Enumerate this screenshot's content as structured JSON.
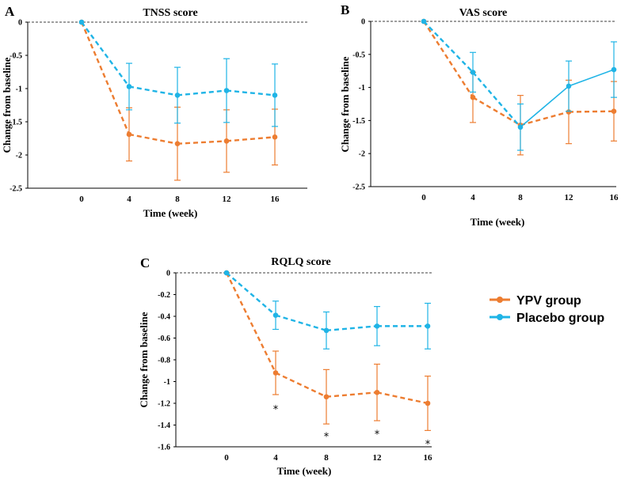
{
  "colors": {
    "ypv": "#ED7D31",
    "placebo": "#1FB4E6",
    "axis": "#000000"
  },
  "legend": {
    "items": [
      {
        "key": "ypv",
        "label": "YPV group"
      },
      {
        "key": "placebo",
        "label": "Placebo group"
      }
    ]
  },
  "chart_data": [
    {
      "id": "A",
      "panel_label": "A",
      "type": "line",
      "title": "TNSS score",
      "xlabel": "Time (week)",
      "ylabel": "Change from baseline",
      "categories": [
        "0",
        "4",
        "8",
        "12",
        "16"
      ],
      "x": [
        0,
        4,
        8,
        12,
        16
      ],
      "ylim": [
        -2.5,
        0
      ],
      "yticks": [
        0,
        -0.5,
        -1,
        -1.5,
        -2,
        -2.5
      ],
      "ytick_labels": [
        "0",
        "-0.5",
        "-1",
        "-1.5",
        "-2",
        "-2.5"
      ],
      "series": [
        {
          "name": "YPV group",
          "color_key": "ypv",
          "values": [
            0,
            -1.69,
            -1.83,
            -1.79,
            -1.73
          ],
          "err": [
            0,
            0.4,
            0.55,
            0.47,
            0.42
          ],
          "dash": [
            true,
            true,
            true,
            true
          ]
        },
        {
          "name": "Placebo group",
          "color_key": "placebo",
          "values": [
            0,
            -0.97,
            -1.1,
            -1.03,
            -1.1
          ],
          "err": [
            0,
            0.35,
            0.42,
            0.48,
            0.47
          ],
          "dash": [
            true,
            true,
            true,
            true
          ]
        }
      ],
      "annotations": []
    },
    {
      "id": "B",
      "panel_label": "B",
      "type": "line",
      "title": "VAS score",
      "xlabel": "Time (week)",
      "ylabel": "Change from baseline",
      "categories": [
        "0",
        "4",
        "8",
        "12",
        "16"
      ],
      "x": [
        0,
        4,
        8,
        12,
        16
      ],
      "ylim": [
        -2.5,
        0
      ],
      "yticks": [
        0,
        -0.5,
        -1,
        -1.5,
        -2,
        -2.5
      ],
      "ytick_labels": [
        "0",
        "-0.5",
        "-1",
        "-1.5",
        "-2",
        "-2.5"
      ],
      "series": [
        {
          "name": "YPV group",
          "color_key": "ypv",
          "values": [
            0,
            -1.15,
            -1.57,
            -1.37,
            -1.36
          ],
          "err": [
            0,
            0.38,
            0.45,
            0.48,
            0.45
          ],
          "dash": [
            true,
            true,
            true,
            true
          ]
        },
        {
          "name": "Placebo group",
          "color_key": "placebo",
          "values": [
            0,
            -0.77,
            -1.6,
            -0.98,
            -0.73
          ],
          "err": [
            0,
            0.3,
            0.35,
            0.38,
            0.42
          ],
          "dash": [
            true,
            true,
            false,
            false
          ]
        }
      ],
      "annotations": []
    },
    {
      "id": "C",
      "panel_label": "C",
      "type": "line",
      "title": "RQLQ score",
      "xlabel": "Time (week)",
      "ylabel": "Change from baseline",
      "categories": [
        "0",
        "4",
        "8",
        "12",
        "16"
      ],
      "x": [
        0,
        4,
        8,
        12,
        16
      ],
      "ylim": [
        -1.6,
        0
      ],
      "yticks": [
        0,
        -0.2,
        -0.4,
        -0.6,
        -0.8,
        -1,
        -1.2,
        -1.4,
        -1.6
      ],
      "ytick_labels": [
        "0",
        "-0.2",
        "-0.4",
        "-0.6",
        "-0.8",
        "-1",
        "-1.2",
        "-1.4",
        "-1.6"
      ],
      "series": [
        {
          "name": "YPV group",
          "color_key": "ypv",
          "values": [
            0,
            -0.92,
            -1.14,
            -1.1,
            -1.2
          ],
          "err": [
            0,
            0.2,
            0.25,
            0.26,
            0.25
          ],
          "dash": [
            true,
            true,
            true,
            true
          ]
        },
        {
          "name": "Placebo group",
          "color_key": "placebo",
          "values": [
            0,
            -0.39,
            -0.53,
            -0.49,
            -0.49
          ],
          "err": [
            0,
            0.13,
            0.17,
            0.18,
            0.21
          ],
          "dash": [
            true,
            true,
            true,
            true
          ]
        }
      ],
      "annotations": [
        {
          "x": 4,
          "y": -1.25,
          "text": "*"
        },
        {
          "x": 8,
          "y": -1.5,
          "text": "*"
        },
        {
          "x": 12,
          "y": -1.48,
          "text": "*"
        },
        {
          "x": 16,
          "y": -1.57,
          "text": "*"
        }
      ]
    }
  ]
}
